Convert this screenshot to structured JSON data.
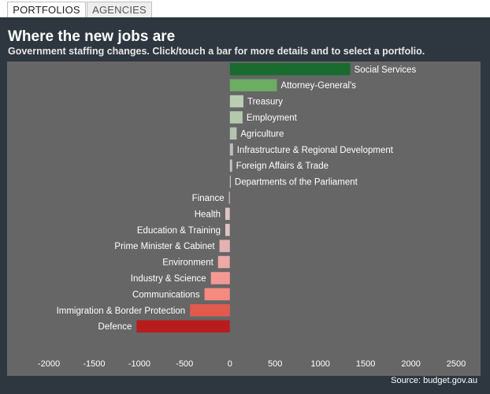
{
  "tabs": [
    {
      "label": "PORTFOLIOS",
      "active": true
    },
    {
      "label": "AGENCIES",
      "active": false
    }
  ],
  "header": {
    "title": "Where the new jobs are",
    "subtitle": "Government staffing changes. Click/touch a bar for more details and to select a portfolio."
  },
  "footer": {
    "source": "Source: budget.gov.au"
  },
  "colors": {
    "panel_bg": "#2e3740",
    "plot_bg": "#666666",
    "increase_dark": "#1a6b30",
    "increase_light": "#b7cdb0",
    "decrease_dark": "#b81c1c",
    "decrease_light": "#e5b6b6"
  },
  "chart_data": {
    "type": "bar",
    "orientation": "horizontal",
    "title": "Where the new jobs are",
    "xlim": [
      -2000,
      2500
    ],
    "xticks": [
      "-2000",
      "-1500",
      "-1000",
      "-500",
      "0",
      "500",
      "1000",
      "1500",
      "2000",
      "2500"
    ],
    "grid": false,
    "categories": [
      "Social Services",
      "Attorney-General's",
      "Treasury",
      "Employment",
      "Agriculture",
      "Infrastructure & Regional Development",
      "Foreign Affairs & Trade",
      "Departments of the Parliament",
      "Finance",
      "Health",
      "Education & Training",
      "Prime Minister & Cabinet",
      "Environment",
      "Industry & Science",
      "Communications",
      "Immigration & Border Protection",
      "Defence"
    ],
    "values": [
      1330,
      520,
      150,
      140,
      75,
      35,
      25,
      10,
      -10,
      -50,
      -50,
      -115,
      -130,
      -210,
      -280,
      -440,
      -1030
    ],
    "colors": [
      "#1a6b30",
      "#6cac63",
      "#b9ceb3",
      "#b4c9ac",
      "#b5c2b0",
      "#bdbdbd",
      "#c4c4c4",
      "#cfcfcf",
      "#d6c6c6",
      "#ddc3c3",
      "#e0c2c2",
      "#e5b2b2",
      "#eea8a6",
      "#f39995",
      "#f58a80",
      "#e25a4d",
      "#b81c1c"
    ]
  }
}
